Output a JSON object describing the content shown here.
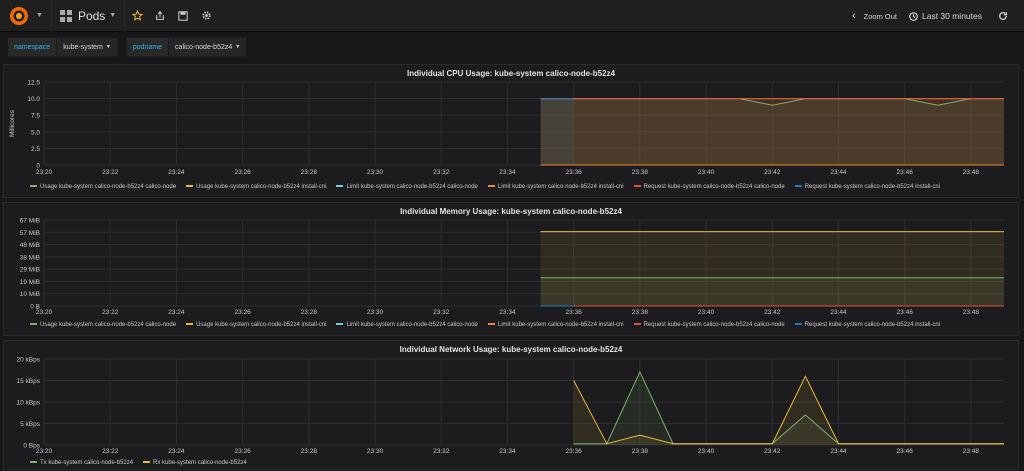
{
  "nav": {
    "dashboard_title": "Pods",
    "zoom_out": "Zoom Out",
    "time_range": "Last 30 minutes"
  },
  "templating": [
    {
      "label": "namespace",
      "value": "kube-system"
    },
    {
      "label": "podname",
      "value": "calico-node-b52z4"
    }
  ],
  "legend_labels": [
    "Usage kube-system calico-node-b52z4 calico-node",
    "Usage kube-system calico-node-b52z4 install-cni",
    "Limit kube-system calico-node-b52z4 calico-node",
    "Limit kube-system calico-node-b52z4 install-cni",
    "Request kube-system calico-node-b52z4 calico-node",
    "Request kube-system calico-node-b52z4 install-cni"
  ],
  "legend_colors": [
    "#7eb26d",
    "#eab839",
    "#6ed0e0",
    "#ef843c",
    "#e24d42",
    "#1f78c1"
  ],
  "x_ticks": [
    "23:20",
    "23:22",
    "23:24",
    "23:26",
    "23:28",
    "23:30",
    "23:32",
    "23:34",
    "23:36",
    "23:38",
    "23:40",
    "23:42",
    "23:44",
    "23:46",
    "23:48"
  ],
  "chart_data": [
    {
      "type": "line",
      "title": "Individual CPU Usage: kube-system calico-node-b52z4",
      "ylabel": "Millicores",
      "xlabel": "",
      "x_range": [
        "23:20",
        "23:49"
      ],
      "ylim": [
        0,
        12.5
      ],
      "y_ticks": [
        "0",
        "2.5",
        "5.0",
        "7.5",
        "10.0",
        "12.5"
      ],
      "grid": true,
      "legend_position": "bottom",
      "series": [
        {
          "name": "Usage kube-system calico-node-b52z4 calico-node",
          "color": "#7eb26d",
          "x": [
            "23:35",
            "23:41",
            "23:42",
            "23:43",
            "23:46",
            "23:47",
            "23:48",
            "23:49"
          ],
          "y": [
            10,
            10,
            9,
            10,
            10,
            9,
            10,
            10
          ]
        },
        {
          "name": "Usage kube-system calico-node-b52z4 install-cni",
          "color": "#eab839",
          "x": [
            "23:35",
            "23:49"
          ],
          "y": [
            10,
            10
          ]
        },
        {
          "name": "Limit kube-system calico-node-b52z4 calico-node",
          "color": "#6ed0e0",
          "x": [
            "23:35",
            "23:49"
          ],
          "y": [
            0,
            0
          ]
        },
        {
          "name": "Limit kube-system calico-node-b52z4 install-cni",
          "color": "#ef843c",
          "x": [
            "23:35",
            "23:49"
          ],
          "y": [
            0,
            0
          ]
        },
        {
          "name": "Request kube-system calico-node-b52z4 calico-node",
          "color": "#e24d42",
          "x": [
            "23:35",
            "23:49"
          ],
          "y": [
            10,
            10
          ]
        },
        {
          "name": "Request kube-system calico-node-b52z4 install-cni",
          "color": "#1f78c1",
          "x": [
            "23:35",
            "23:36"
          ],
          "y": [
            10,
            10
          ]
        }
      ]
    },
    {
      "type": "line",
      "title": "Individual Memory Usage: kube-system calico-node-b52z4",
      "ylabel": "",
      "xlabel": "",
      "x_range": [
        "23:20",
        "23:49"
      ],
      "ylim": [
        0,
        67
      ],
      "y_ticks": [
        "0 B",
        "10 MiB",
        "19 MiB",
        "29 MiB",
        "38 MiB",
        "48 MiB",
        "57 MiB",
        "67 MiB"
      ],
      "grid": true,
      "legend_position": "bottom",
      "series": [
        {
          "name": "Usage kube-system calico-node-b52z4 calico-node",
          "color": "#7eb26d",
          "x": [
            "23:35",
            "23:49"
          ],
          "y": [
            22,
            22
          ]
        },
        {
          "name": "Usage kube-system calico-node-b52z4 install-cni",
          "color": "#eab839",
          "x": [
            "23:35",
            "23:49"
          ],
          "y": [
            58,
            58
          ]
        },
        {
          "name": "Limit kube-system calico-node-b52z4 calico-node",
          "color": "#6ed0e0",
          "x": [
            "23:35",
            "23:49"
          ],
          "y": [
            0,
            0
          ]
        },
        {
          "name": "Limit kube-system calico-node-b52z4 install-cni",
          "color": "#ef843c",
          "x": [
            "23:35",
            "23:49"
          ],
          "y": [
            0,
            0
          ]
        },
        {
          "name": "Request kube-system calico-node-b52z4 calico-node",
          "color": "#e24d42",
          "x": [
            "23:35",
            "23:49"
          ],
          "y": [
            0,
            0
          ]
        },
        {
          "name": "Request kube-system calico-node-b52z4 install-cni",
          "color": "#1f78c1",
          "x": [
            "23:35",
            "23:36"
          ],
          "y": [
            0,
            0
          ]
        }
      ]
    },
    {
      "type": "area",
      "title": "Individual Network Usage: kube-system calico-node-b52z4",
      "ylabel": "",
      "xlabel": "",
      "x_range": [
        "23:20",
        "23:49"
      ],
      "ylim": [
        0,
        20
      ],
      "y_ticks": [
        "0 Bps",
        "5 kBps",
        "10 kBps",
        "15 kBps",
        "20 kBps"
      ],
      "grid": true,
      "legend_position": "bottom",
      "series": [
        {
          "name": "Tx kube-system calico-node-b52z4",
          "color": "#7eb26d",
          "x": [
            "23:36",
            "23:37",
            "23:38",
            "23:39",
            "23:42",
            "23:43",
            "23:44",
            "23:49"
          ],
          "y": [
            0.3,
            0.3,
            17,
            0.3,
            0.3,
            7,
            0.3,
            0.3
          ]
        },
        {
          "name": "Rx kube-system calico-node-b52z4",
          "color": "#eab839",
          "x": [
            "23:36",
            "23:37",
            "23:38",
            "23:39",
            "23:42",
            "23:43",
            "23:44",
            "23:49"
          ],
          "y": [
            15,
            0.3,
            2.3,
            0.3,
            0.3,
            16,
            0.3,
            0.3
          ]
        }
      ]
    }
  ]
}
